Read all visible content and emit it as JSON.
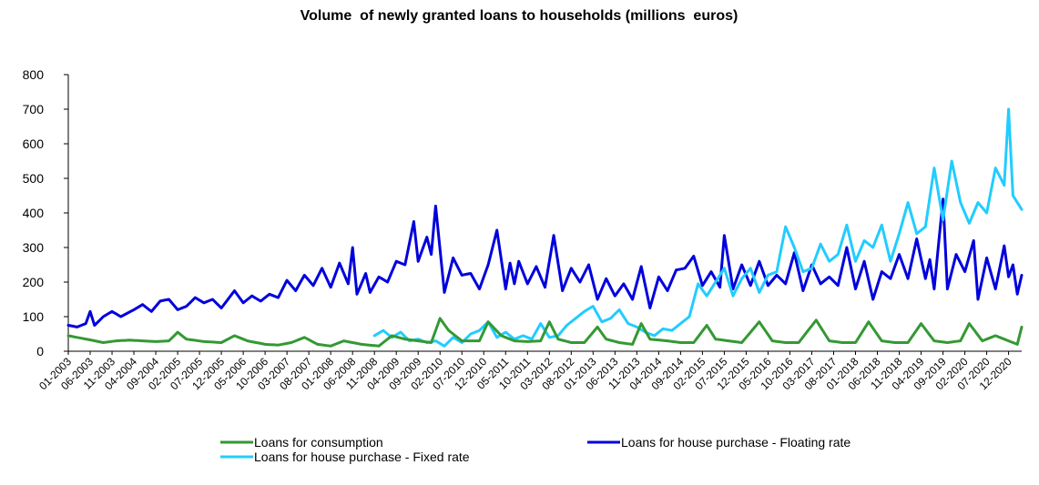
{
  "chart_data": {
    "type": "line",
    "title": "Volume  of newly granted loans to households (millions  euros)",
    "xlabel": "",
    "ylabel": "",
    "ylim": [
      0,
      800
    ],
    "yticks": [
      0,
      100,
      200,
      300,
      400,
      500,
      600,
      700,
      800
    ],
    "grid": false,
    "legend_position": "bottom",
    "period": {
      "start": "01-2003",
      "end": "03-2021",
      "frequency": "monthly"
    },
    "xtick_labels": [
      "01-2003",
      "06-2003",
      "11-2003",
      "04-2004",
      "09-2004",
      "02-2005",
      "07-2005",
      "12-2005",
      "05-2006",
      "10-2006",
      "03-2007",
      "08-2007",
      "01-2008",
      "06-2008",
      "11-2008",
      "04-2009",
      "09-2009",
      "02-2010",
      "07-2010",
      "12-2010",
      "05-2011",
      "10-2011",
      "03-2012",
      "08-2012",
      "01-2013",
      "06-2013",
      "11-2013",
      "04-2014",
      "09-2014",
      "02-2015",
      "07-2015",
      "12-2015",
      "05-2016",
      "10-2016",
      "03-2017",
      "08-2017",
      "01-2018",
      "06-2018",
      "11-2018",
      "04-2019",
      "09-2019",
      "02-2020",
      "07-2020",
      "12-2020"
    ],
    "series": [
      {
        "name": "Loans for consumption",
        "color": "#339933",
        "keypoints": [
          [
            "01-2003",
            45
          ],
          [
            "03-2003",
            40
          ],
          [
            "06-2003",
            33
          ],
          [
            "09-2003",
            25
          ],
          [
            "12-2003",
            30
          ],
          [
            "03-2004",
            32
          ],
          [
            "06-2004",
            30
          ],
          [
            "09-2004",
            28
          ],
          [
            "12-2004",
            30
          ],
          [
            "02-2005",
            55
          ],
          [
            "04-2005",
            35
          ],
          [
            "08-2005",
            28
          ],
          [
            "12-2005",
            25
          ],
          [
            "03-2006",
            45
          ],
          [
            "06-2006",
            30
          ],
          [
            "10-2006",
            20
          ],
          [
            "01-2007",
            18
          ],
          [
            "04-2007",
            25
          ],
          [
            "07-2007",
            40
          ],
          [
            "10-2007",
            20
          ],
          [
            "01-2008",
            15
          ],
          [
            "04-2008",
            30
          ],
          [
            "08-2008",
            20
          ],
          [
            "12-2008",
            15
          ],
          [
            "03-2009",
            45
          ],
          [
            "06-2009",
            35
          ],
          [
            "09-2009",
            30
          ],
          [
            "12-2009",
            25
          ],
          [
            "02-2010",
            95
          ],
          [
            "04-2010",
            60
          ],
          [
            "07-2010",
            30
          ],
          [
            "11-2010",
            30
          ],
          [
            "01-2011",
            85
          ],
          [
            "04-2011",
            45
          ],
          [
            "07-2011",
            30
          ],
          [
            "10-2011",
            28
          ],
          [
            "01-2012",
            30
          ],
          [
            "03-2012",
            85
          ],
          [
            "05-2012",
            35
          ],
          [
            "08-2012",
            25
          ],
          [
            "11-2012",
            25
          ],
          [
            "02-2013",
            70
          ],
          [
            "04-2013",
            35
          ],
          [
            "07-2013",
            25
          ],
          [
            "10-2013",
            20
          ],
          [
            "12-2013",
            80
          ],
          [
            "02-2014",
            35
          ],
          [
            "06-2014",
            30
          ],
          [
            "09-2014",
            25
          ],
          [
            "12-2014",
            25
          ],
          [
            "03-2015",
            75
          ],
          [
            "05-2015",
            35
          ],
          [
            "08-2015",
            30
          ],
          [
            "11-2015",
            25
          ],
          [
            "03-2016",
            85
          ],
          [
            "06-2016",
            30
          ],
          [
            "09-2016",
            25
          ],
          [
            "12-2016",
            25
          ],
          [
            "04-2017",
            90
          ],
          [
            "07-2017",
            30
          ],
          [
            "10-2017",
            25
          ],
          [
            "01-2018",
            25
          ],
          [
            "04-2018",
            85
          ],
          [
            "07-2018",
            30
          ],
          [
            "10-2018",
            25
          ],
          [
            "01-2019",
            25
          ],
          [
            "04-2019",
            80
          ],
          [
            "07-2019",
            30
          ],
          [
            "10-2019",
            25
          ],
          [
            "01-2020",
            30
          ],
          [
            "03-2020",
            80
          ],
          [
            "06-2020",
            30
          ],
          [
            "09-2020",
            45
          ],
          [
            "12-2020",
            30
          ],
          [
            "02-2021",
            20
          ],
          [
            "03-2021",
            70
          ]
        ]
      },
      {
        "name": "Loans for house purchase - Floating rate",
        "color": "#0000dd",
        "keypoints": [
          [
            "01-2003",
            75
          ],
          [
            "03-2003",
            70
          ],
          [
            "05-2003",
            80
          ],
          [
            "06-2003",
            115
          ],
          [
            "07-2003",
            75
          ],
          [
            "09-2003",
            100
          ],
          [
            "11-2003",
            115
          ],
          [
            "01-2004",
            100
          ],
          [
            "04-2004",
            120
          ],
          [
            "06-2004",
            135
          ],
          [
            "08-2004",
            115
          ],
          [
            "10-2004",
            145
          ],
          [
            "12-2004",
            150
          ],
          [
            "02-2005",
            120
          ],
          [
            "04-2005",
            130
          ],
          [
            "06-2005",
            155
          ],
          [
            "08-2005",
            140
          ],
          [
            "10-2005",
            150
          ],
          [
            "12-2005",
            125
          ],
          [
            "03-2006",
            175
          ],
          [
            "05-2006",
            140
          ],
          [
            "07-2006",
            160
          ],
          [
            "09-2006",
            145
          ],
          [
            "11-2006",
            165
          ],
          [
            "01-2007",
            155
          ],
          [
            "03-2007",
            205
          ],
          [
            "05-2007",
            175
          ],
          [
            "07-2007",
            220
          ],
          [
            "09-2007",
            190
          ],
          [
            "11-2007",
            240
          ],
          [
            "01-2008",
            185
          ],
          [
            "03-2008",
            255
          ],
          [
            "05-2008",
            195
          ],
          [
            "06-2008",
            300
          ],
          [
            "07-2008",
            165
          ],
          [
            "09-2008",
            225
          ],
          [
            "10-2008",
            170
          ],
          [
            "12-2008",
            215
          ],
          [
            "02-2009",
            200
          ],
          [
            "04-2009",
            260
          ],
          [
            "06-2009",
            250
          ],
          [
            "08-2009",
            375
          ],
          [
            "09-2009",
            260
          ],
          [
            "11-2009",
            330
          ],
          [
            "12-2009",
            280
          ],
          [
            "01-2010",
            420
          ],
          [
            "03-2010",
            170
          ],
          [
            "05-2010",
            270
          ],
          [
            "07-2010",
            220
          ],
          [
            "09-2010",
            225
          ],
          [
            "11-2010",
            180
          ],
          [
            "01-2011",
            250
          ],
          [
            "03-2011",
            350
          ],
          [
            "05-2011",
            180
          ],
          [
            "06-2011",
            255
          ],
          [
            "07-2011",
            195
          ],
          [
            "08-2011",
            260
          ],
          [
            "10-2011",
            195
          ],
          [
            "12-2011",
            245
          ],
          [
            "02-2012",
            185
          ],
          [
            "04-2012",
            335
          ],
          [
            "06-2012",
            175
          ],
          [
            "08-2012",
            240
          ],
          [
            "10-2012",
            200
          ],
          [
            "12-2012",
            250
          ],
          [
            "02-2013",
            150
          ],
          [
            "04-2013",
            210
          ],
          [
            "06-2013",
            160
          ],
          [
            "08-2013",
            195
          ],
          [
            "10-2013",
            150
          ],
          [
            "12-2013",
            245
          ],
          [
            "02-2014",
            125
          ],
          [
            "04-2014",
            215
          ],
          [
            "06-2014",
            175
          ],
          [
            "08-2014",
            235
          ],
          [
            "10-2014",
            240
          ],
          [
            "12-2014",
            275
          ],
          [
            "02-2015",
            190
          ],
          [
            "04-2015",
            230
          ],
          [
            "06-2015",
            185
          ],
          [
            "07-2015",
            335
          ],
          [
            "09-2015",
            180
          ],
          [
            "11-2015",
            250
          ],
          [
            "01-2016",
            190
          ],
          [
            "03-2016",
            260
          ],
          [
            "05-2016",
            190
          ],
          [
            "07-2016",
            220
          ],
          [
            "09-2016",
            195
          ],
          [
            "11-2016",
            285
          ],
          [
            "01-2017",
            175
          ],
          [
            "03-2017",
            250
          ],
          [
            "05-2017",
            195
          ],
          [
            "07-2017",
            215
          ],
          [
            "09-2017",
            190
          ],
          [
            "11-2017",
            300
          ],
          [
            "01-2018",
            180
          ],
          [
            "03-2018",
            260
          ],
          [
            "05-2018",
            150
          ],
          [
            "07-2018",
            230
          ],
          [
            "09-2018",
            210
          ],
          [
            "11-2018",
            280
          ],
          [
            "01-2019",
            210
          ],
          [
            "03-2019",
            325
          ],
          [
            "05-2019",
            210
          ],
          [
            "06-2019",
            265
          ],
          [
            "07-2019",
            180
          ],
          [
            "09-2019",
            440
          ],
          [
            "10-2019",
            180
          ],
          [
            "12-2019",
            280
          ],
          [
            "02-2020",
            230
          ],
          [
            "04-2020",
            320
          ],
          [
            "05-2020",
            150
          ],
          [
            "07-2020",
            270
          ],
          [
            "09-2020",
            180
          ],
          [
            "11-2020",
            305
          ],
          [
            "12-2020",
            215
          ],
          [
            "01-2021",
            250
          ],
          [
            "02-2021",
            165
          ],
          [
            "03-2021",
            220
          ]
        ]
      },
      {
        "name": "Loans for house purchase - Fixed rate",
        "color": "#22ccff",
        "start": "11-2008",
        "keypoints": [
          [
            "11-2008",
            45
          ],
          [
            "01-2009",
            60
          ],
          [
            "03-2009",
            40
          ],
          [
            "05-2009",
            55
          ],
          [
            "07-2009",
            30
          ],
          [
            "09-2009",
            35
          ],
          [
            "11-2009",
            25
          ],
          [
            "01-2010",
            30
          ],
          [
            "03-2010",
            15
          ],
          [
            "05-2010",
            40
          ],
          [
            "07-2010",
            25
          ],
          [
            "09-2010",
            50
          ],
          [
            "11-2010",
            60
          ],
          [
            "01-2011",
            85
          ],
          [
            "03-2011",
            40
          ],
          [
            "05-2011",
            55
          ],
          [
            "07-2011",
            35
          ],
          [
            "09-2011",
            45
          ],
          [
            "11-2011",
            35
          ],
          [
            "01-2012",
            80
          ],
          [
            "03-2012",
            40
          ],
          [
            "05-2012",
            45
          ],
          [
            "07-2012",
            75
          ],
          [
            "09-2012",
            95
          ],
          [
            "11-2012",
            115
          ],
          [
            "01-2013",
            130
          ],
          [
            "03-2013",
            85
          ],
          [
            "05-2013",
            95
          ],
          [
            "07-2013",
            120
          ],
          [
            "09-2013",
            80
          ],
          [
            "11-2013",
            70
          ],
          [
            "01-2014",
            55
          ],
          [
            "03-2014",
            45
          ],
          [
            "05-2014",
            65
          ],
          [
            "07-2014",
            60
          ],
          [
            "09-2014",
            80
          ],
          [
            "11-2014",
            100
          ],
          [
            "01-2015",
            195
          ],
          [
            "03-2015",
            160
          ],
          [
            "05-2015",
            200
          ],
          [
            "07-2015",
            240
          ],
          [
            "09-2015",
            160
          ],
          [
            "11-2015",
            210
          ],
          [
            "01-2016",
            240
          ],
          [
            "03-2016",
            170
          ],
          [
            "05-2016",
            220
          ],
          [
            "07-2016",
            230
          ],
          [
            "09-2016",
            360
          ],
          [
            "11-2016",
            300
          ],
          [
            "01-2017",
            230
          ],
          [
            "03-2017",
            240
          ],
          [
            "05-2017",
            310
          ],
          [
            "07-2017",
            260
          ],
          [
            "09-2017",
            280
          ],
          [
            "11-2017",
            365
          ],
          [
            "01-2018",
            260
          ],
          [
            "03-2018",
            320
          ],
          [
            "05-2018",
            300
          ],
          [
            "07-2018",
            365
          ],
          [
            "09-2018",
            260
          ],
          [
            "11-2018",
            340
          ],
          [
            "01-2019",
            430
          ],
          [
            "03-2019",
            340
          ],
          [
            "05-2019",
            360
          ],
          [
            "07-2019",
            530
          ],
          [
            "09-2019",
            380
          ],
          [
            "11-2019",
            550
          ],
          [
            "01-2020",
            430
          ],
          [
            "03-2020",
            370
          ],
          [
            "05-2020",
            430
          ],
          [
            "07-2020",
            400
          ],
          [
            "09-2020",
            530
          ],
          [
            "11-2020",
            480
          ],
          [
            "12-2020",
            700
          ],
          [
            "01-2021",
            450
          ],
          [
            "03-2021",
            410
          ]
        ]
      }
    ]
  }
}
